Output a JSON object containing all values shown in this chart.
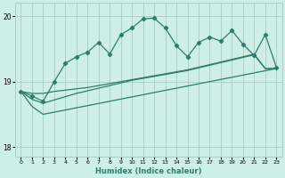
{
  "xlabel": "Humidex (Indice chaleur)",
  "bg_color": "#ceeee8",
  "grid_color": "#a8ccc8",
  "line_color": "#2e7d6e",
  "xlim": [
    -0.5,
    23.5
  ],
  "ylim": [
    17.85,
    20.2
  ],
  "yticks": [
    18,
    19,
    20
  ],
  "xticks": [
    0,
    1,
    2,
    3,
    4,
    5,
    6,
    7,
    8,
    9,
    10,
    11,
    12,
    13,
    14,
    15,
    16,
    17,
    18,
    19,
    20,
    21,
    22,
    23
  ],
  "line1_x": [
    0,
    1,
    2,
    3,
    4,
    5,
    6,
    7,
    8,
    9,
    10,
    11,
    12,
    13,
    14,
    15,
    16,
    17,
    18,
    19,
    20,
    21,
    22,
    23
  ],
  "line1_y": [
    18.85,
    18.78,
    18.7,
    19.0,
    19.28,
    19.38,
    19.45,
    19.6,
    19.42,
    19.72,
    19.82,
    19.96,
    19.97,
    19.82,
    19.55,
    19.38,
    19.6,
    19.68,
    19.62,
    19.78,
    19.57,
    19.4,
    19.72,
    19.22
  ],
  "line2_x": [
    0,
    1,
    2,
    3,
    4,
    5,
    6,
    7,
    8,
    9,
    10,
    11,
    12,
    13,
    14,
    15,
    16,
    17,
    18,
    19,
    20,
    21,
    22,
    23
  ],
  "line2_y": [
    18.85,
    18.82,
    18.82,
    18.85,
    18.87,
    18.89,
    18.91,
    18.94,
    18.97,
    19.0,
    19.03,
    19.06,
    19.09,
    19.12,
    19.15,
    19.18,
    19.22,
    19.26,
    19.3,
    19.34,
    19.38,
    19.42,
    19.2,
    19.2
  ],
  "line3_x": [
    0,
    1,
    2,
    3,
    4,
    5,
    6,
    7,
    8,
    9,
    10,
    11,
    12,
    13,
    14,
    15,
    16,
    17,
    18,
    19,
    20,
    21,
    22,
    23
  ],
  "line3_y": [
    18.85,
    18.73,
    18.67,
    18.72,
    18.77,
    18.82,
    18.86,
    18.9,
    18.94,
    18.98,
    19.02,
    19.05,
    19.08,
    19.11,
    19.14,
    19.17,
    19.21,
    19.25,
    19.29,
    19.33,
    19.37,
    19.41,
    19.2,
    19.2
  ],
  "line4_x": [
    0,
    1,
    2,
    23
  ],
  "line4_y": [
    18.85,
    18.62,
    18.5,
    19.2
  ]
}
